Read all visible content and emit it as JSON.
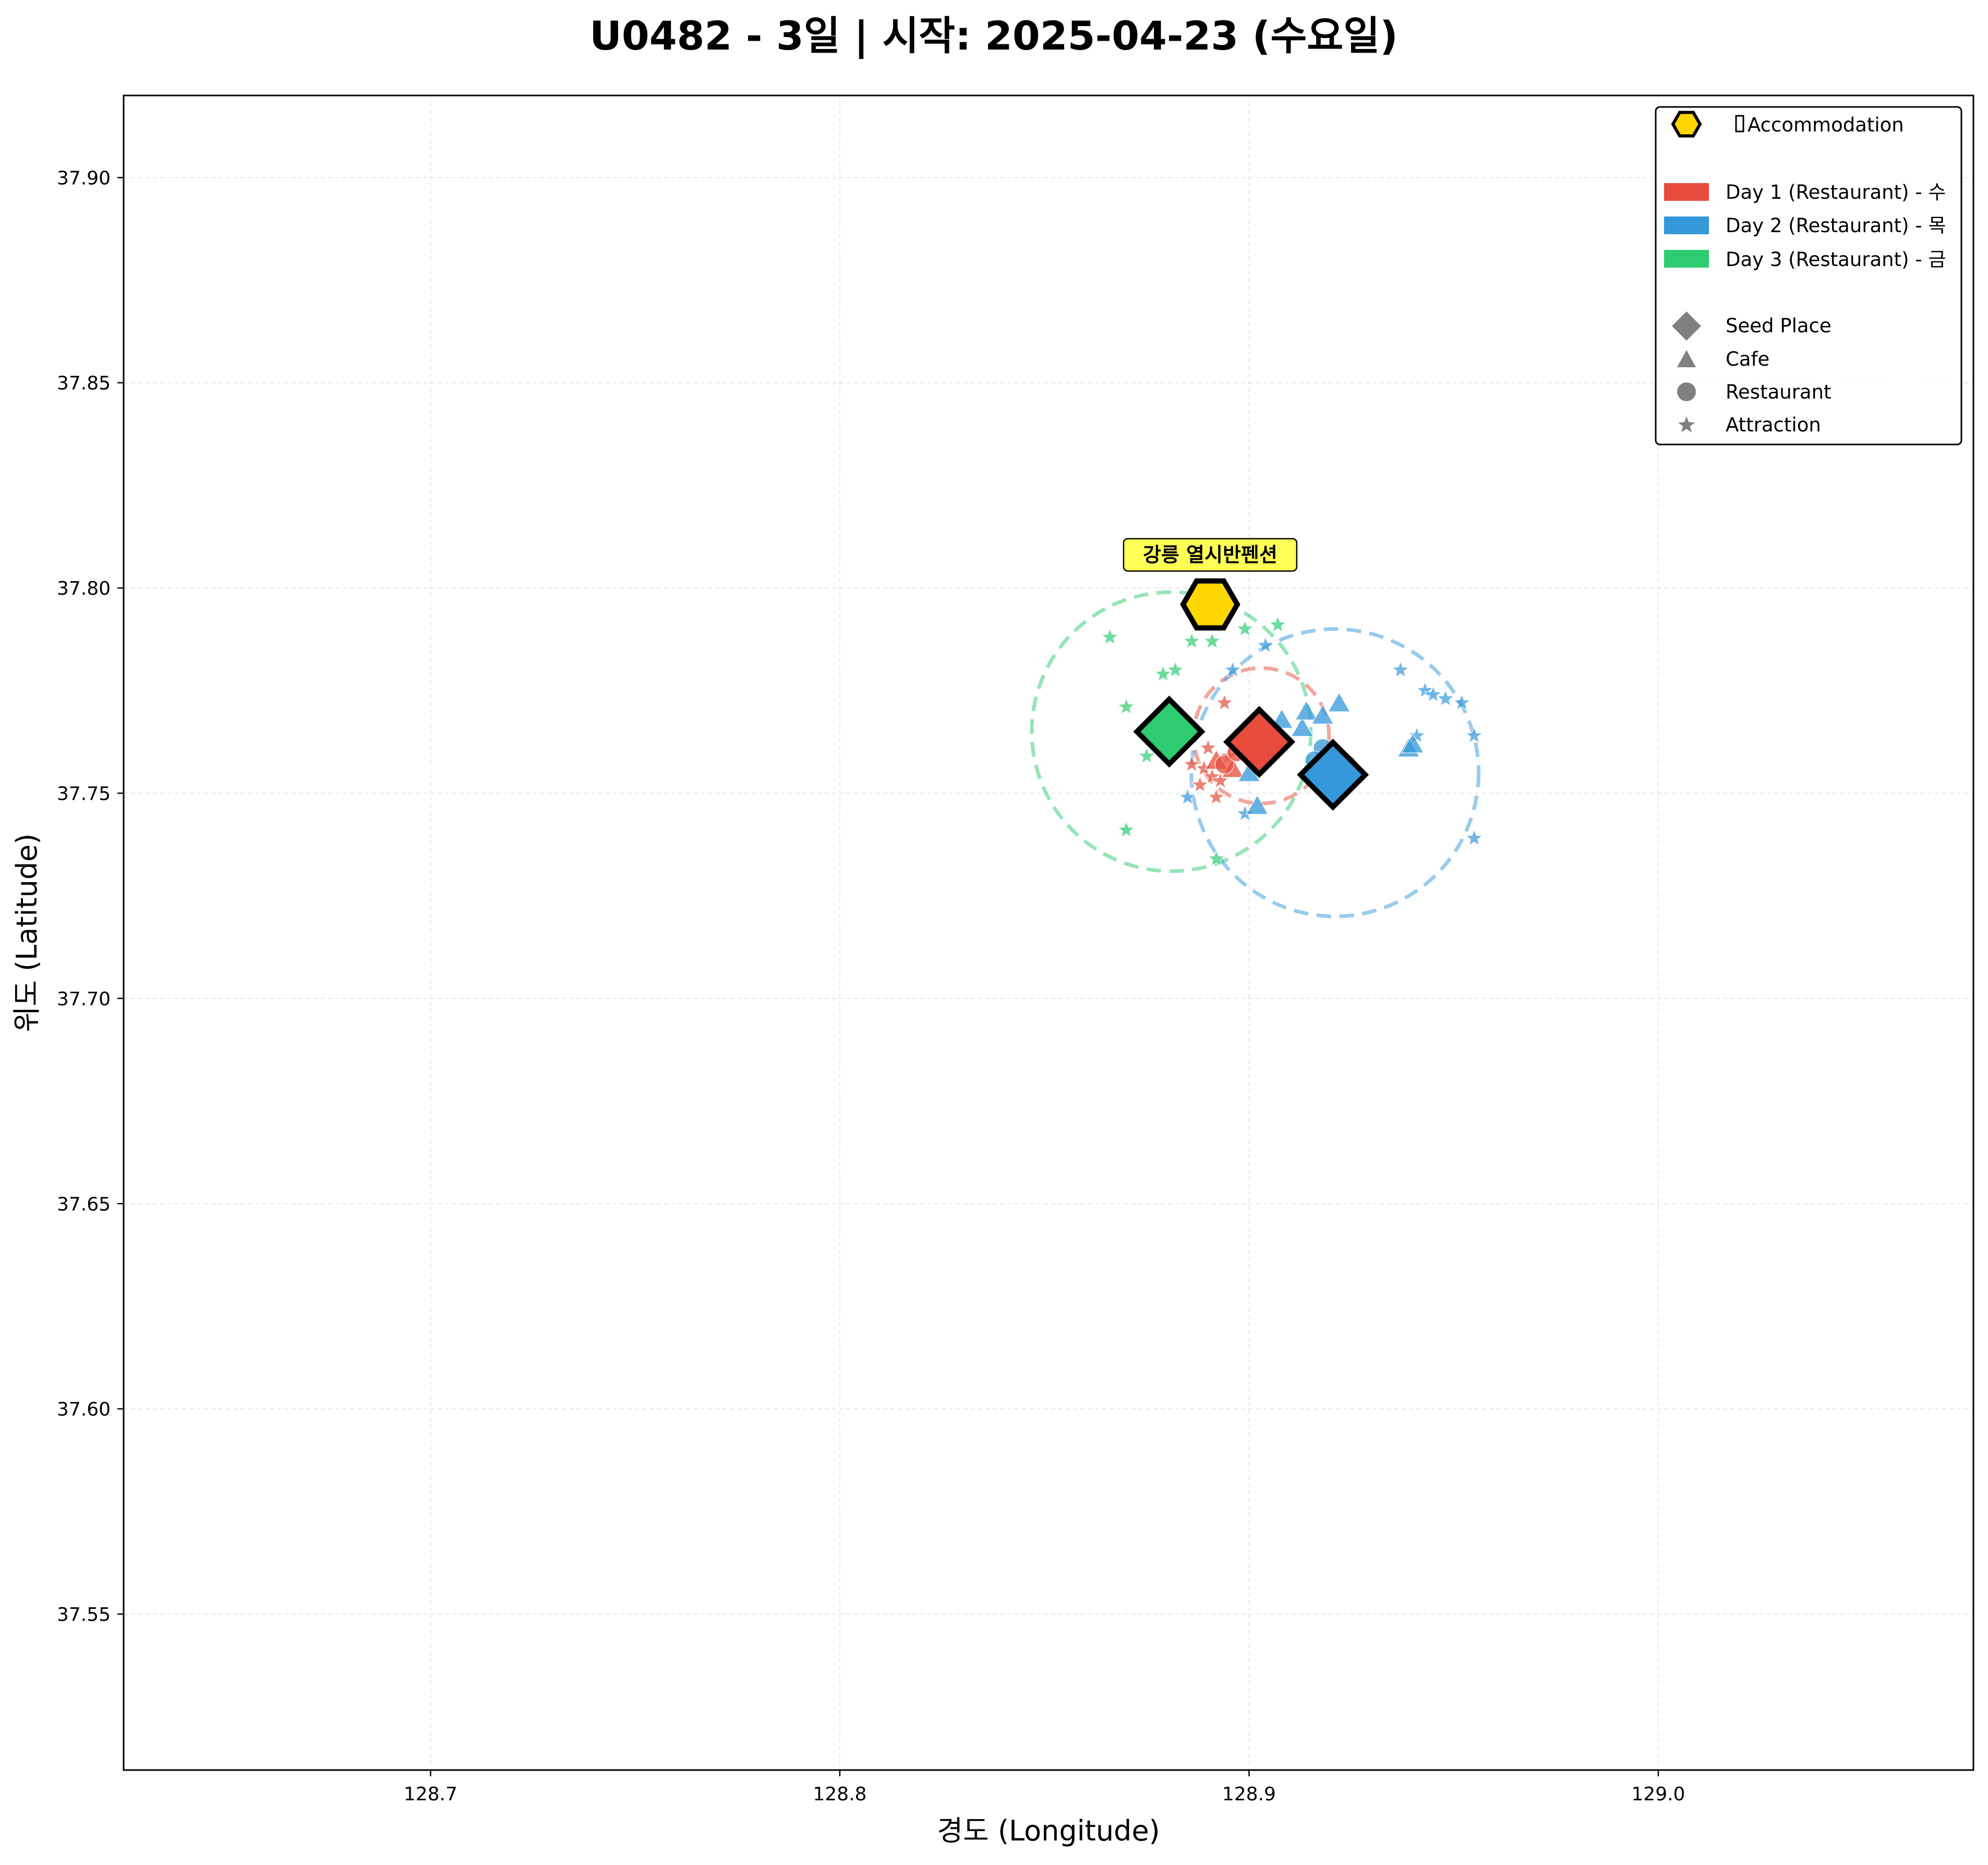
{
  "chart_data": {
    "type": "scatter",
    "title": "U0482 - 3일 | 시작: 2025-04-23 (수요일)",
    "xlabel": "경도 (Longitude)",
    "ylabel": "위도 (Latitude)",
    "xlim": [
      128.625,
      129.077
    ],
    "ylim": [
      37.512,
      37.92
    ],
    "xticks": [
      "128.7",
      "128.8",
      "128.9",
      "129.0"
    ],
    "yticks": [
      "37.55",
      "37.60",
      "37.65",
      "37.70",
      "37.75",
      "37.80",
      "37.85",
      "37.90"
    ],
    "grid": true,
    "legend_position": "top-right",
    "colors": {
      "day1": "#e74c3c",
      "day2": "#3498db",
      "day3": "#2ecc71",
      "accommodation": "#ffd700",
      "neutral": "#808080"
    },
    "legend": {
      "accommodation": "Accommodation",
      "day1": "Day 1 (Restaurant) - 수",
      "day2": "Day 2 (Restaurant) - 목",
      "day3": "Day 3 (Restaurant) - 금",
      "seed": "Seed Place",
      "cafe": "Cafe",
      "restaurant": "Restaurant",
      "attraction": "Attraction"
    },
    "accommodation": {
      "name": "강릉 열시반펜션",
      "lon": 128.8905,
      "lat": 37.796
    },
    "days": [
      {
        "day": 1,
        "color_key": "day1",
        "seed": {
          "lon": 128.9025,
          "lat": 37.7625
        },
        "circle": {
          "lon": 128.903,
          "lat": 37.764,
          "radius_lat": 0.0165
        },
        "cafes": [
          [
            128.892,
            37.758
          ],
          [
            128.896,
            37.756
          ]
        ],
        "restaurants": [
          [
            128.894,
            37.757
          ],
          [
            128.897,
            37.76
          ]
        ],
        "attractions": [
          [
            128.888,
            37.752
          ],
          [
            128.89,
            37.761
          ],
          [
            128.892,
            37.749
          ],
          [
            128.894,
            37.772
          ],
          [
            128.886,
            37.757
          ],
          [
            128.889,
            37.756
          ],
          [
            128.891,
            37.754
          ],
          [
            128.895,
            37.759
          ],
          [
            128.893,
            37.753
          ]
        ]
      },
      {
        "day": 2,
        "color_key": "day2",
        "seed": {
          "lon": 128.9205,
          "lat": 37.7545
        },
        "circle": {
          "lon": 128.921,
          "lat": 37.755,
          "radius_lat": 0.035
        },
        "cafes": [
          [
            128.908,
            37.768
          ],
          [
            128.913,
            37.766
          ],
          [
            128.914,
            37.77
          ],
          [
            128.918,
            37.769
          ],
          [
            128.922,
            37.772
          ],
          [
            128.9,
            37.755
          ],
          [
            128.902,
            37.747
          ],
          [
            128.939,
            37.761
          ],
          [
            128.94,
            37.762
          ]
        ],
        "restaurants": [
          [
            128.918,
            37.761
          ],
          [
            128.916,
            37.758
          ],
          [
            128.92,
            37.752
          ],
          [
            128.924,
            37.757
          ]
        ],
        "attractions": [
          [
            128.896,
            37.78
          ],
          [
            128.904,
            37.786
          ],
          [
            128.937,
            37.78
          ],
          [
            128.943,
            37.775
          ],
          [
            128.945,
            37.774
          ],
          [
            128.948,
            37.773
          ],
          [
            128.952,
            37.772
          ],
          [
            128.955,
            37.764
          ],
          [
            128.955,
            37.739
          ],
          [
            128.885,
            37.749
          ],
          [
            128.899,
            37.745
          ],
          [
            128.941,
            37.764
          ]
        ]
      },
      {
        "day": 3,
        "color_key": "day3",
        "seed": {
          "lon": 128.8805,
          "lat": 37.765
        },
        "circle": {
          "lon": 128.881,
          "lat": 37.765,
          "radius_lat": 0.034
        },
        "cafes": [],
        "restaurants": [],
        "attractions": [
          [
            128.866,
            37.788
          ],
          [
            128.87,
            37.771
          ],
          [
            128.875,
            37.759
          ],
          [
            128.879,
            37.779
          ],
          [
            128.882,
            37.78
          ],
          [
            128.886,
            37.787
          ],
          [
            128.891,
            37.787
          ],
          [
            128.899,
            37.79
          ],
          [
            128.907,
            37.791
          ],
          [
            128.87,
            37.741
          ],
          [
            128.892,
            37.734
          ]
        ]
      }
    ]
  }
}
